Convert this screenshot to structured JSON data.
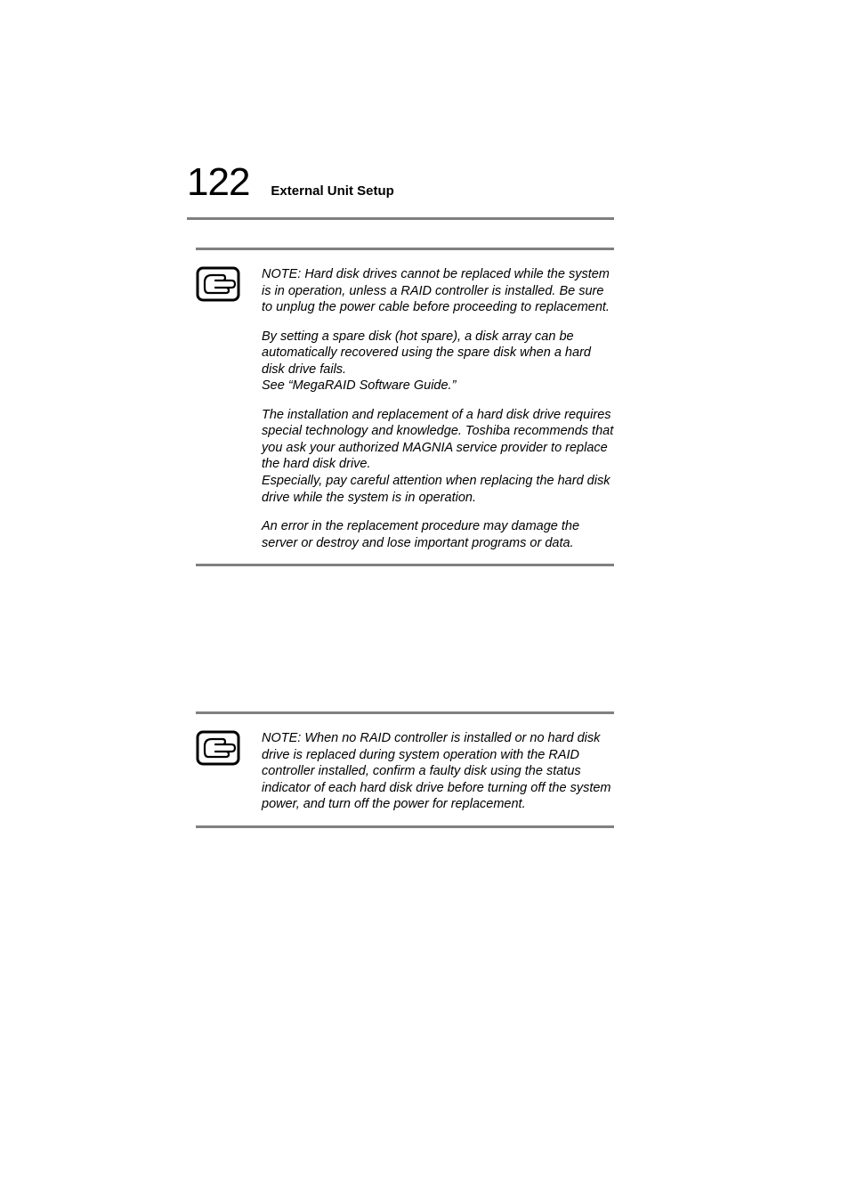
{
  "header": {
    "page_number": "122",
    "section_title": "External Unit Setup",
    "rule_color": "#808080"
  },
  "notes": [
    {
      "icon_name": "note-hand-icon",
      "paragraphs": [
        "NOTE: Hard disk drives cannot be replaced while the system is in operation, unless a RAID controller is installed.  Be sure to unplug the power cable before proceeding to replacement.",
        "By setting a spare disk (hot spare), a disk array can be automatically recovered using the spare disk when a hard disk drive fails.\nSee “MegaRAID Software Guide.”",
        "The installation and replacement of a hard disk drive requires special technology and knowledge.  Toshiba recommends that you ask your authorized MAGNIA service provider to replace the hard disk drive.\nEspecially, pay careful attention when replacing the hard disk drive while the system is in operation.",
        "An error in the replacement procedure may damage the server or destroy and lose important programs or data."
      ]
    },
    {
      "icon_name": "note-hand-icon",
      "paragraphs": [
        "NOTE: When no RAID controller is installed or no hard disk drive is replaced during system operation with the RAID controller installed, confirm a faulty disk using the status indicator of each hard disk drive before turning off the system power, and turn off the power for replacement."
      ]
    }
  ],
  "style": {
    "page_number_fontsize": 44,
    "section_title_fontsize": 15,
    "body_fontsize": 14.5,
    "rule_color": "#808080",
    "background_color": "#ffffff",
    "text_color": "#000000"
  }
}
